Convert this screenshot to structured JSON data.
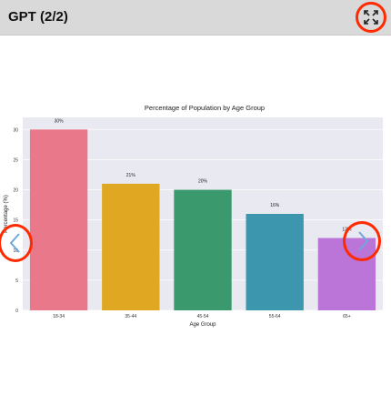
{
  "header": {
    "title": "GPT (2/2)"
  },
  "icons": {
    "fullscreen": "fullscreen-icon",
    "prev": "chevron-left-icon",
    "next": "chevron-right-icon"
  },
  "colors": {
    "header_bg": "#d9d9d9",
    "annotation_circle": "#ff2a00",
    "plot_bg": "#e9e9f1",
    "nav_arrow": "#6fa8dc"
  },
  "chart_data": {
    "type": "bar",
    "title": "Percentage of Population by Age Group",
    "xlabel": "Age Group",
    "ylabel": "Percentage (%)",
    "categories": [
      "18-34",
      "35-44",
      "45-54",
      "55-64",
      "65+"
    ],
    "values": [
      30,
      21,
      20,
      16,
      12
    ],
    "data_labels": [
      "30%",
      "21%",
      "20%",
      "16%",
      "12%"
    ],
    "bar_colors": [
      "#e8788a",
      "#e0a822",
      "#3a9a6e",
      "#3c96ad",
      "#bb74d8"
    ],
    "ylim": [
      0,
      32
    ],
    "yticks": [
      0,
      5,
      10,
      15,
      20,
      25,
      30
    ],
    "grid": true,
    "legend": "none"
  }
}
